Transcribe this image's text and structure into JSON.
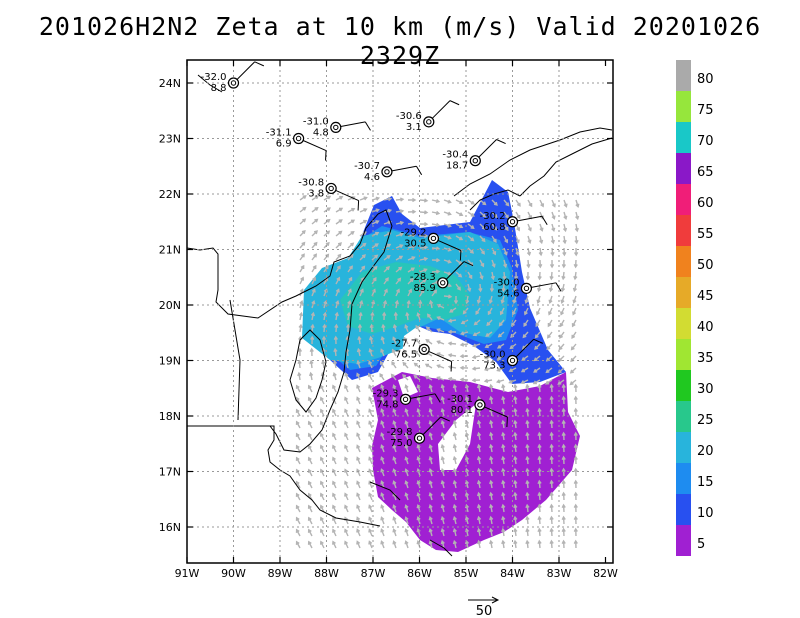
{
  "title": "201026H2N2 Zeta at 10 km (m/s) Valid 20201026 2329Z",
  "map": {
    "lat_labels": [
      "24N",
      "23N",
      "22N",
      "21N",
      "20N",
      "19N",
      "18N",
      "17N",
      "16N"
    ],
    "lon_labels": [
      "91W",
      "90W",
      "89W",
      "88W",
      "87W",
      "86W",
      "85W",
      "84W",
      "83W",
      "82W"
    ],
    "lat_range": [
      15.3,
      24.5
    ],
    "lon_range": [
      -91,
      -81.8
    ],
    "grid": true
  },
  "colorbar": {
    "labels": [
      "80",
      "75",
      "70",
      "65",
      "60",
      "55",
      "50",
      "45",
      "40",
      "35",
      "30",
      "25",
      "20",
      "15",
      "10",
      "5"
    ],
    "colors": [
      "#aaaaaa",
      "#96e63c",
      "#19c8c8",
      "#8a18c8",
      "#f01e78",
      "#f03c3c",
      "#f0821e",
      "#e6aa28",
      "#d2dc32",
      "#a0e632",
      "#20c820",
      "#28c88c",
      "#28b4dc",
      "#1e8cf0",
      "#2850f0",
      "#a020d2"
    ]
  },
  "reference_vector": {
    "label": "50"
  },
  "stations": [
    {
      "lon": -90.0,
      "lat": 24.0,
      "t": "-32.0",
      "v": "8.8"
    },
    {
      "lon": -87.8,
      "lat": 23.2,
      "t": "-31.0",
      "v": "4.8"
    },
    {
      "lon": -88.6,
      "lat": 23.0,
      "t": "-31.1",
      "v": "6.9"
    },
    {
      "lon": -85.8,
      "lat": 23.3,
      "t": "-30.6",
      "v": "3.1"
    },
    {
      "lon": -86.7,
      "lat": 22.4,
      "t": "-30.7",
      "v": "4.6"
    },
    {
      "lon": -87.9,
      "lat": 22.1,
      "t": "-30.8",
      "v": "3.8"
    },
    {
      "lon": -84.8,
      "lat": 22.6,
      "t": "-30.4",
      "v": "18.7"
    },
    {
      "lon": -84.0,
      "lat": 21.5,
      "t": "-30.2",
      "v": "60.8"
    },
    {
      "lon": -85.7,
      "lat": 21.2,
      "t": "-29.2",
      "v": "30.5"
    },
    {
      "lon": -85.5,
      "lat": 20.4,
      "t": "-28.3",
      "v": "85.9"
    },
    {
      "lon": -83.7,
      "lat": 20.3,
      "t": "-30.0",
      "v": "54.6"
    },
    {
      "lon": -85.9,
      "lat": 19.2,
      "t": "-27.7",
      "v": "76.5"
    },
    {
      "lon": -84.0,
      "lat": 19.0,
      "t": "-30.0",
      "v": "73.3"
    },
    {
      "lon": -86.3,
      "lat": 18.3,
      "t": "-29.3",
      "v": "74.8"
    },
    {
      "lon": -84.7,
      "lat": 18.2,
      "t": "-30.1",
      "v": "80.1"
    },
    {
      "lon": -86.0,
      "lat": 17.6,
      "t": "-29.8",
      "v": "75.0"
    }
  ]
}
